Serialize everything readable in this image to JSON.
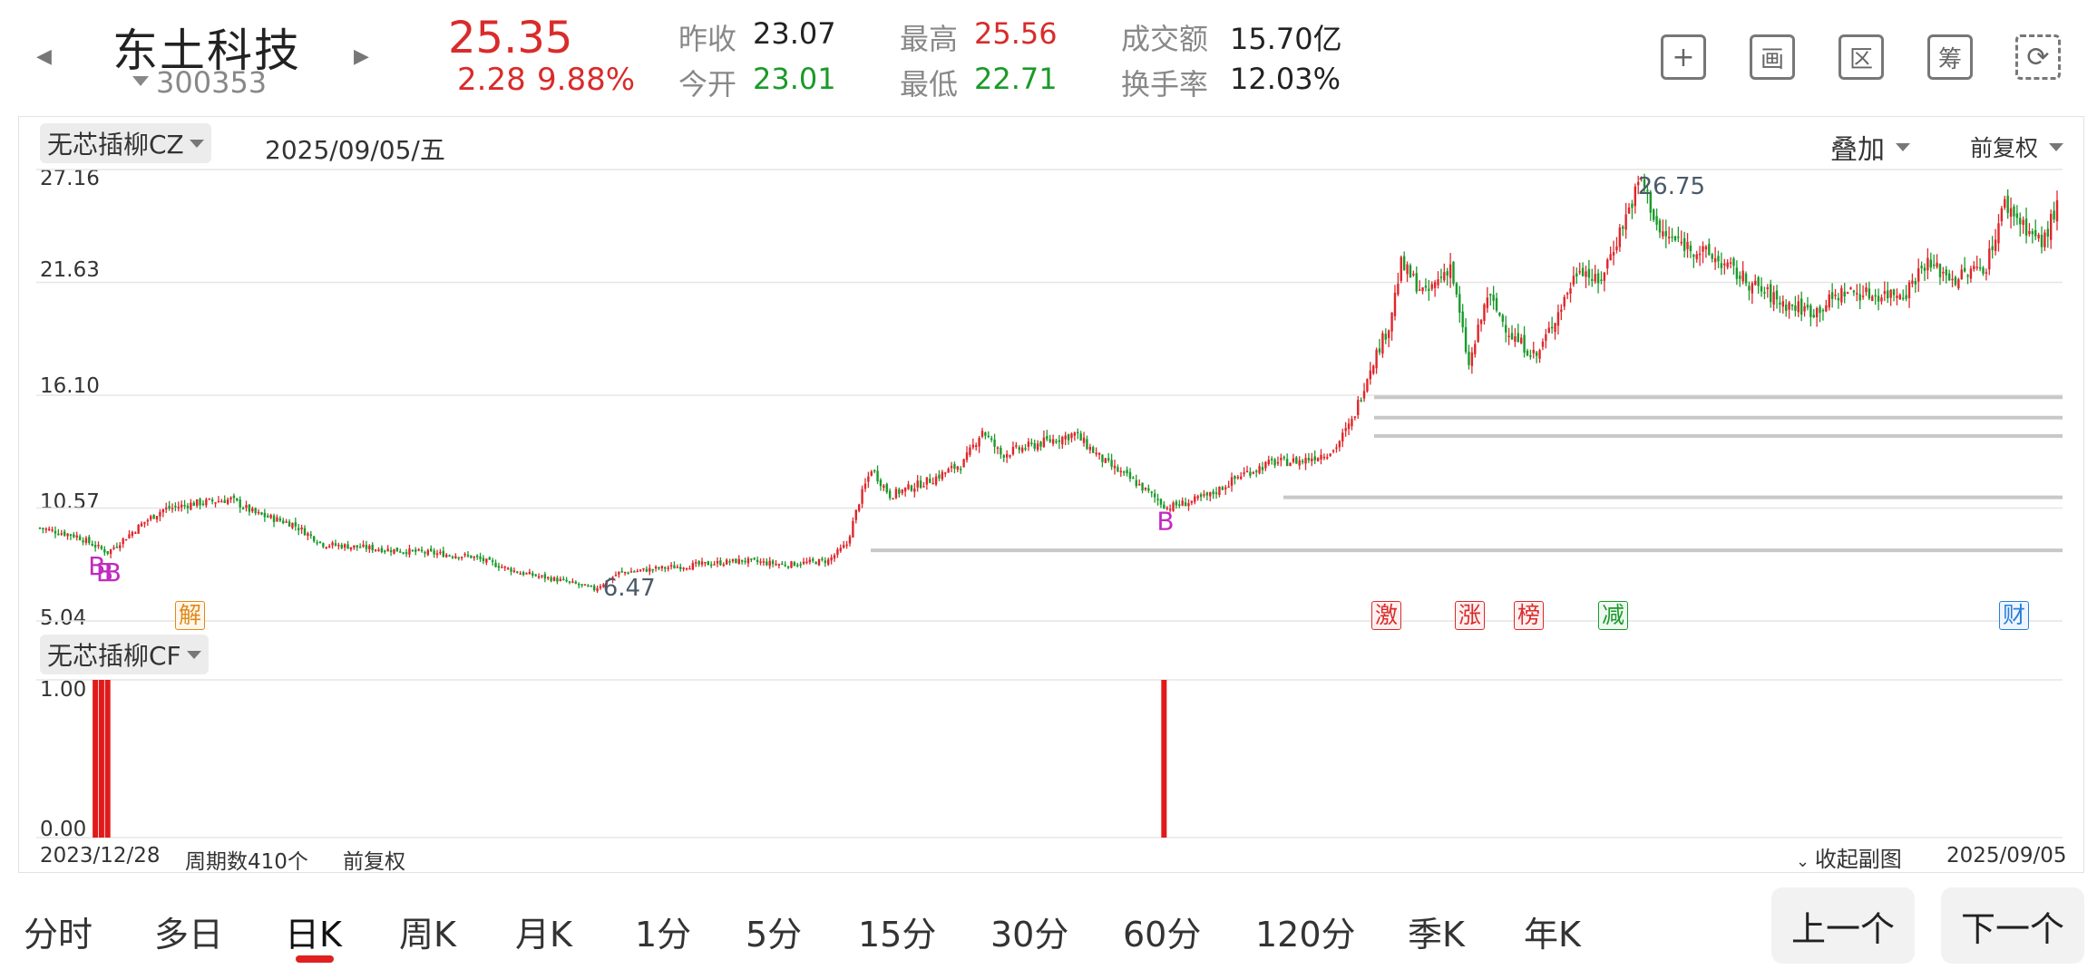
{
  "header": {
    "stock_name": "东土科技",
    "stock_code": "300353",
    "last_price": "25.35",
    "change_abs": "2.28",
    "change_pct": "9.88%",
    "quotes": [
      {
        "label": "昨收",
        "value": "23.07",
        "color": "dark"
      },
      {
        "label": "今开",
        "value": "23.01",
        "color": "green"
      },
      {
        "label": "最高",
        "value": "25.56",
        "color": "red"
      },
      {
        "label": "最低",
        "value": "22.71",
        "color": "green"
      },
      {
        "label": "成交额",
        "value": "15.70亿",
        "color": "dark"
      },
      {
        "label": "换手率",
        "value": "12.03%",
        "color": "dark"
      }
    ],
    "tools": [
      {
        "name": "add-watchlist-icon",
        "glyph": "+"
      },
      {
        "name": "draw-tool-icon",
        "glyph": "画"
      },
      {
        "name": "range-stat-icon",
        "glyph": "区"
      },
      {
        "name": "chip-dist-icon",
        "glyph": "筹"
      },
      {
        "name": "rotate-screen-icon",
        "glyph": "⟳"
      }
    ]
  },
  "chart": {
    "indicator": "无芯插柳CZ",
    "date": "2025/09/05/五",
    "overlay": "叠加",
    "adjust": "前复权",
    "price_ticks": [
      "27.16",
      "21.63",
      "16.10",
      "10.57",
      "5.04"
    ],
    "high_label": "26.75",
    "low_label": "6.47",
    "signal_mark": "B",
    "event_badges": [
      {
        "text": "解",
        "color": "#e08a1a"
      },
      {
        "text": "激",
        "color": "#d92b2b"
      },
      {
        "text": "涨",
        "color": "#d92b2b"
      },
      {
        "text": "榜",
        "color": "#d92b2b"
      },
      {
        "text": "减",
        "color": "#1a9a2a"
      },
      {
        "text": "财",
        "color": "#2a7fd9"
      }
    ]
  },
  "sub_chart": {
    "indicator": "无芯插柳CF",
    "ticks": [
      "1.00",
      "0.00"
    ],
    "start_date": "2023/12/28",
    "cycle_count": "周期数410个",
    "adjust": "前复权",
    "collapse": "收起副图",
    "end_date": "2025/09/05"
  },
  "period_tabs": [
    "分时",
    "多日",
    "日K",
    "周K",
    "月K",
    "1分",
    "5分",
    "15分",
    "30分",
    "60分",
    "120分",
    "季K",
    "年K"
  ],
  "active_tab": "日K",
  "pager": {
    "prev": "上一个",
    "next": "下一个"
  },
  "chart_data": {
    "type": "candlestick",
    "title": "",
    "x_range": [
      "2023/12/28",
      "2025/09/05"
    ],
    "ylim": [
      5.04,
      27.16
    ],
    "y_ticks": [
      5.04,
      10.57,
      16.1,
      21.63,
      27.16
    ],
    "price_path": [
      [
        0,
        9.6
      ],
      [
        12,
        9.2
      ],
      [
        22,
        8.4
      ],
      [
        26,
        8.9
      ],
      [
        34,
        9.9
      ],
      [
        40,
        10.5
      ],
      [
        50,
        10.8
      ],
      [
        62,
        11.0
      ],
      [
        70,
        10.3
      ],
      [
        82,
        9.8
      ],
      [
        92,
        8.8
      ],
      [
        108,
        8.6
      ],
      [
        124,
        8.4
      ],
      [
        140,
        8.2
      ],
      [
        156,
        7.4
      ],
      [
        170,
        7.0
      ],
      [
        180,
        6.6
      ],
      [
        188,
        7.4
      ],
      [
        200,
        7.6
      ],
      [
        214,
        7.8
      ],
      [
        228,
        8.0
      ],
      [
        242,
        7.8
      ],
      [
        256,
        8.0
      ],
      [
        262,
        8.8
      ],
      [
        266,
        10.9
      ],
      [
        270,
        12.5
      ],
      [
        276,
        11.2
      ],
      [
        290,
        12.0
      ],
      [
        300,
        12.8
      ],
      [
        306,
        14.4
      ],
      [
        312,
        13.2
      ],
      [
        326,
        13.8
      ],
      [
        336,
        14.2
      ],
      [
        346,
        12.8
      ],
      [
        356,
        11.8
      ],
      [
        366,
        10.6
      ],
      [
        374,
        10.9
      ],
      [
        380,
        11.2
      ],
      [
        390,
        12.2
      ],
      [
        400,
        12.8
      ],
      [
        410,
        12.9
      ],
      [
        420,
        13.4
      ],
      [
        426,
        14.8
      ],
      [
        432,
        17.5
      ],
      [
        438,
        19.5
      ],
      [
        442,
        22.5
      ],
      [
        450,
        21.0
      ],
      [
        458,
        22.5
      ],
      [
        464,
        17.5
      ],
      [
        470,
        21.0
      ],
      [
        478,
        19.0
      ],
      [
        486,
        18.0
      ],
      [
        494,
        20.5
      ],
      [
        500,
        22.5
      ],
      [
        506,
        21.5
      ],
      [
        514,
        24.5
      ],
      [
        520,
        26.75
      ],
      [
        526,
        24.0
      ],
      [
        534,
        23.5
      ],
      [
        544,
        22.8
      ],
      [
        556,
        21.5
      ],
      [
        566,
        20.6
      ],
      [
        576,
        20.2
      ],
      [
        586,
        21.2
      ],
      [
        596,
        21.0
      ],
      [
        606,
        21.2
      ],
      [
        612,
        22.6
      ],
      [
        622,
        21.8
      ],
      [
        632,
        22.5
      ],
      [
        638,
        25.5
      ],
      [
        644,
        24.5
      ],
      [
        650,
        23.5
      ],
      [
        655,
        25.35
      ]
    ],
    "horizontal_levels": [
      8.5,
      11.1,
      14.1,
      15.0,
      16.0
    ],
    "buy_signals": [
      [
        18,
        8.1
      ],
      [
        20,
        7.8
      ],
      [
        22,
        7.8
      ],
      [
        365,
        10.3
      ]
    ],
    "sub_series": {
      "name": "无芯插柳CF",
      "ylim": [
        0,
        1
      ],
      "pulses": [
        18,
        20,
        22,
        365
      ]
    }
  }
}
